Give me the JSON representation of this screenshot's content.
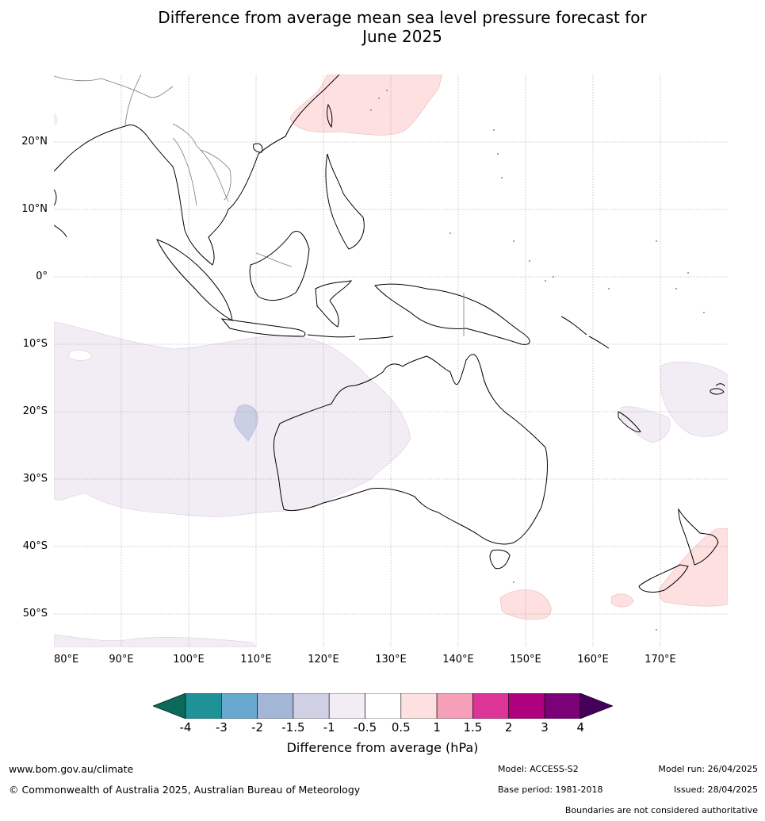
{
  "title": {
    "line1": "Difference from average mean sea level pressure forecast for",
    "line2": "June 2025"
  },
  "map": {
    "lat_labels": [
      "20°N",
      "10°N",
      "0°",
      "10°S",
      "20°S",
      "30°S",
      "40°S",
      "50°S"
    ],
    "lon_labels": [
      "80°E",
      "90°E",
      "100°E",
      "110°E",
      "120°E",
      "130°E",
      "140°E",
      "150°E",
      "160°E",
      "170°E"
    ],
    "lon_range": [
      80,
      180
    ],
    "lat_range": [
      -55,
      30
    ],
    "gridlines": true,
    "anomaly_regions": [
      {
        "category": "0.5 to 1",
        "area": "East China Sea / Taiwan / south of Japan",
        "color": "#fde0df"
      },
      {
        "category": "-1 to -0.5",
        "area": "South-east Indian Ocean west of Australia",
        "color": "#f2ecf5"
      },
      {
        "category": "-1.5 to -1",
        "area": "Small patch west of Western Australia near 108°E 21°S",
        "color": "#cbcfe4"
      },
      {
        "category": "-1 to -0.5",
        "area": "South-west Pacific near New Caledonia and Fiji",
        "color": "#f2ecf5"
      },
      {
        "category": "0.5 to 1",
        "area": "Tasman Sea east of New Zealand",
        "color": "#fde0df"
      },
      {
        "category": "0.5 to 1",
        "area": "South of Tasmania",
        "color": "#fde0df"
      },
      {
        "category": "-1 to -0.5",
        "area": "Southern Ocean far south-west",
        "color": "#f2ecf5"
      }
    ]
  },
  "colorbar": {
    "label": "Difference from average (hPa)",
    "ticks": [
      "-4",
      "-3",
      "-2",
      "-1.5",
      "-1",
      "-0.5",
      "0.5",
      "1",
      "1.5",
      "2",
      "3",
      "4"
    ],
    "under_color": "#0b6b5a",
    "over_color": "#44005a",
    "colors": [
      "#1e9297",
      "#67a9cf",
      "#a3b6d8",
      "#cfd0e3",
      "#f2ecf5",
      "#ffffff",
      "#fde0df",
      "#f69fb8",
      "#dd3497",
      "#ae017e",
      "#7a0177"
    ]
  },
  "footer": {
    "url": "www.bom.gov.au/climate",
    "copyright": "© Commonwealth of Australia 2025, Australian Bureau of Meteorology",
    "model": "Model: ACCESS-S2",
    "base_period": "Base period: 1981-2018",
    "model_run": "Model run: 26/04/2025",
    "issued": "Issued: 28/04/2025",
    "disclaimer": "Boundaries are not considered authoritative"
  }
}
